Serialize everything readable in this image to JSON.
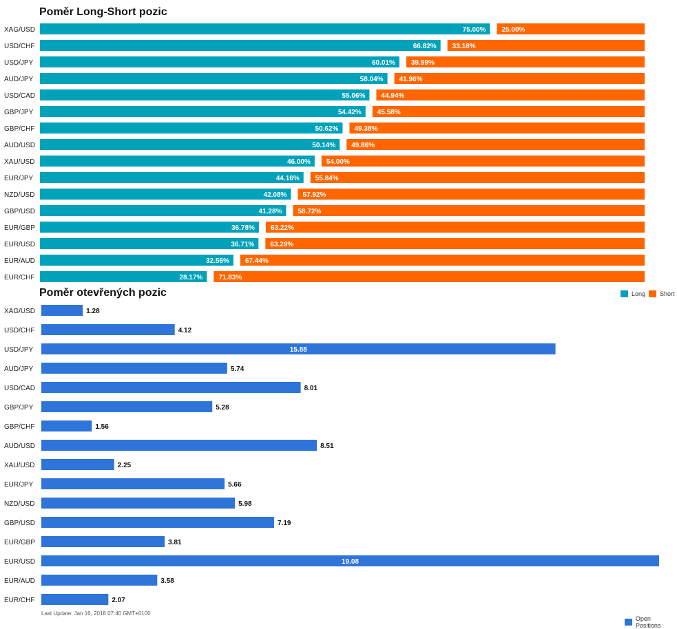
{
  "colors": {
    "long": "#00A2BA",
    "short": "#FF6600",
    "open": "#2E74D9"
  },
  "chart_data": [
    {
      "type": "bar",
      "orientation": "horizontal",
      "stacked": true,
      "title": "Poměr Long-Short pozic",
      "categories": [
        "XAG/USD",
        "USD/CHF",
        "USD/JPY",
        "AUD/JPY",
        "USD/CAD",
        "GBP/JPY",
        "GBP/CHF",
        "AUD/USD",
        "XAU/USD",
        "EUR/JPY",
        "NZD/USD",
        "GBP/USD",
        "EUR/GBP",
        "EUR/USD",
        "EUR/AUD",
        "EUR/CHF"
      ],
      "series": [
        {
          "name": "Long",
          "values": [
            75.0,
            66.82,
            60.01,
            58.04,
            55.06,
            54.42,
            50.62,
            50.14,
            46.0,
            44.16,
            42.08,
            41.28,
            36.78,
            36.71,
            32.56,
            28.17
          ]
        },
        {
          "name": "Short",
          "values": [
            25.0,
            33.18,
            39.99,
            41.96,
            44.94,
            45.58,
            49.38,
            49.86,
            54.0,
            55.84,
            57.92,
            58.72,
            63.22,
            63.29,
            67.44,
            71.83
          ]
        }
      ],
      "value_labels": {
        "long": [
          "75.00%",
          "66.82%",
          "60.01%",
          "58.04%",
          "55.06%",
          "54.42%",
          "50.62%",
          "50.14%",
          "46.00%",
          "44.16%",
          "42.08%",
          "41.28%",
          "36.78%",
          "36.71%",
          "32.56%",
          "28.17%"
        ],
        "short": [
          "25.00%",
          "33.18%",
          "39.99%",
          "41.96%",
          "44.94%",
          "45.58%",
          "49.38%",
          "49.86%",
          "54.00%",
          "55.84%",
          "57.92%",
          "58.72%",
          "63.22%",
          "63.29%",
          "67.44%",
          "71.83%"
        ]
      },
      "xlim": [
        0,
        100
      ],
      "legend": {
        "placement": "bottom-right",
        "entries": [
          "Long",
          "Short"
        ]
      },
      "grid": false
    },
    {
      "type": "bar",
      "orientation": "horizontal",
      "title": "Poměr otevřených pozic",
      "categories": [
        "XAG/USD",
        "USD/CHF",
        "USD/JPY",
        "AUD/JPY",
        "USD/CAD",
        "GBP/JPY",
        "GBP/CHF",
        "AUD/USD",
        "XAU/USD",
        "EUR/JPY",
        "NZD/USD",
        "GBP/USD",
        "EUR/GBP",
        "EUR/USD",
        "EUR/AUD",
        "EUR/CHF"
      ],
      "series": [
        {
          "name": "Open Positions",
          "values": [
            1.28,
            4.12,
            15.88,
            5.74,
            8.01,
            5.28,
            1.56,
            8.51,
            2.25,
            5.66,
            5.98,
            7.19,
            3.81,
            19.08,
            3.58,
            2.07
          ]
        }
      ],
      "value_labels": [
        "1.28",
        "4.12",
        "15.88",
        "5.74",
        "8.01",
        "5.28",
        "1.56",
        "8.51",
        "2.25",
        "5.66",
        "5.98",
        "7.19",
        "3.81",
        "19.08",
        "3.58",
        "2.07"
      ],
      "xlim": [
        0,
        19.08
      ],
      "legend": {
        "placement": "bottom-right",
        "entries": [
          "Open Positions"
        ]
      },
      "grid": false
    }
  ],
  "legend": {
    "long_label": "Long",
    "short_label": "Short",
    "open_label": "Open Positions"
  },
  "footer": {
    "text": "Last Update: Jan 16, 2018 07:40 GMT+0100"
  }
}
